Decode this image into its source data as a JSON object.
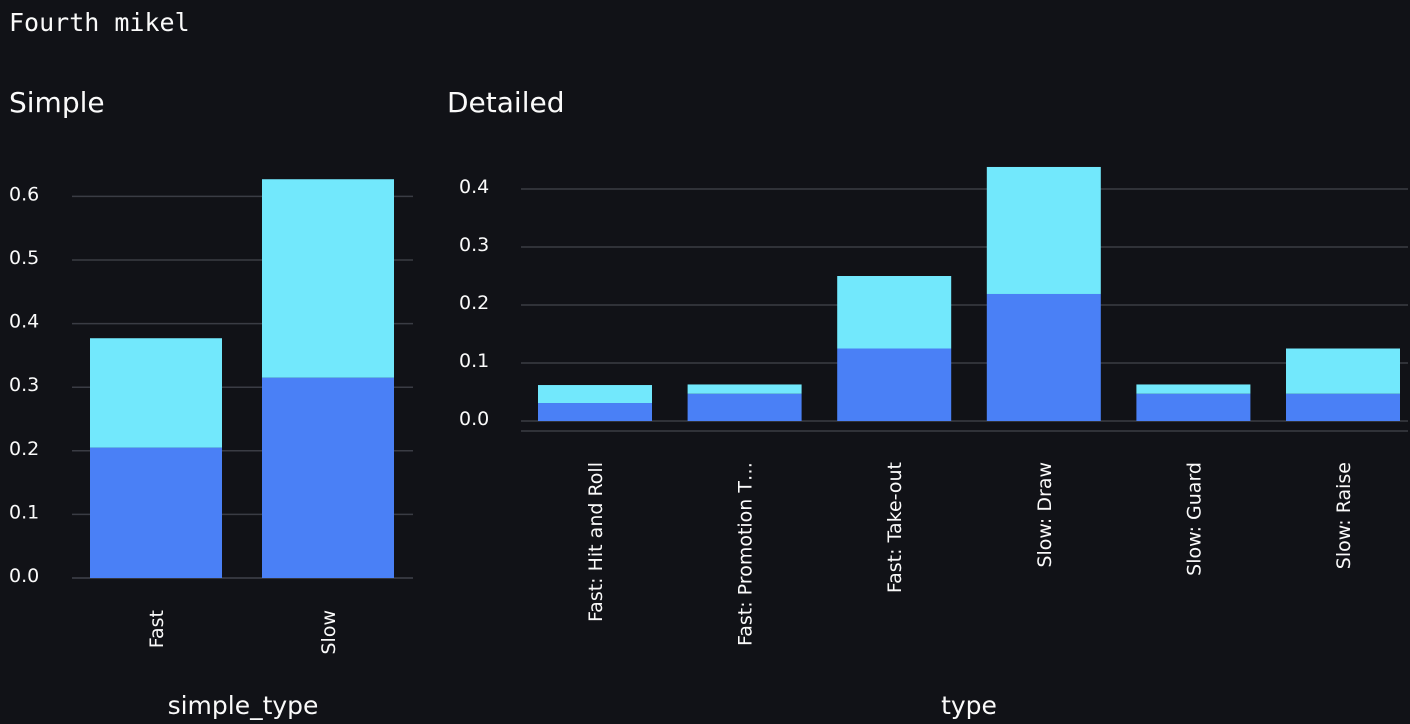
{
  "page": {
    "title": "Fourth mikel"
  },
  "colors": {
    "background": "#111217",
    "series_1": "#4a80f6",
    "series_2": "#72e8fc",
    "grid": "#3a3c44",
    "text": "#fafafa"
  },
  "chart_data": [
    {
      "type": "bar",
      "stacked": true,
      "title": "Simple",
      "xlabel": "simple_type",
      "ylabel": "",
      "categories": [
        "Fast",
        "Slow"
      ],
      "series": [
        {
          "values": [
            0.205,
            0.315
          ]
        },
        {
          "values": [
            0.172,
            0.312
          ]
        }
      ],
      "ylim": [
        0,
        0.63
      ],
      "yticks": [
        0.0,
        0.1,
        0.2,
        0.3,
        0.4,
        0.5,
        0.6
      ],
      "grid": true,
      "legend": "none"
    },
    {
      "type": "bar",
      "stacked": true,
      "title": "Detailed",
      "xlabel": "type",
      "ylabel": "",
      "categories": [
        "Fast: Hit and Roll",
        "Fast: Promotion T…",
        "Fast: Take-out",
        "Slow: Draw",
        "Slow: Guard",
        "Slow: Raise"
      ],
      "series": [
        {
          "values": [
            0.031,
            0.047,
            0.125,
            0.219,
            0.047,
            0.047
          ]
        },
        {
          "values": [
            0.031,
            0.016,
            0.125,
            0.219,
            0.016,
            0.078
          ]
        }
      ],
      "ylim": [
        -0.02,
        0.44
      ],
      "yticks": [
        0.0,
        0.1,
        0.2,
        0.3,
        0.4
      ],
      "grid": true,
      "legend": "none"
    }
  ]
}
